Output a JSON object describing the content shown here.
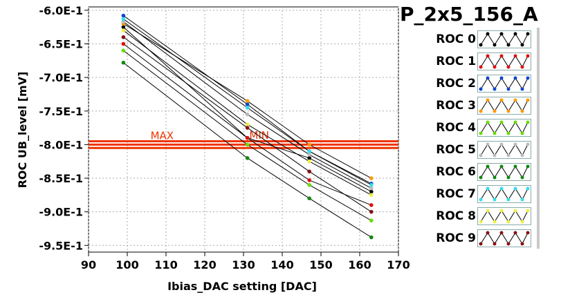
{
  "chart_data": {
    "type": "line",
    "title": "P_2x5_156_A",
    "xlabel": "Ibias_DAC setting [DAC]",
    "ylabel": "ROC UB_level [mV]",
    "xlim": [
      90,
      170
    ],
    "ylim": [
      -0.96,
      -0.595
    ],
    "x_ticks": [
      "90",
      "100",
      "110",
      "120",
      "130",
      "140",
      "150",
      "160",
      "170"
    ],
    "x_tick_values": [
      90,
      100,
      110,
      120,
      130,
      140,
      150,
      160,
      170
    ],
    "y_ticks": [
      "-6.0E-1",
      "-6.5E-1",
      "-7.0E-1",
      "-7.5E-1",
      "-8.0E-1",
      "-8.5E-1",
      "-9.0E-1",
      "-9.5E-1"
    ],
    "y_tick_values": [
      -0.6,
      -0.65,
      -0.7,
      -0.75,
      -0.8,
      -0.85,
      -0.9,
      -0.95
    ],
    "grid": true,
    "legend_position": "right",
    "series": [
      {
        "name": "ROC 0",
        "color": "#000000",
        "points": [
          [
            99,
            -0.625
          ],
          [
            131,
            -0.79
          ],
          [
            147,
            -0.82
          ],
          [
            163,
            -0.87
          ]
        ]
      },
      {
        "name": "ROC 1",
        "color": "#dd1111",
        "points": [
          [
            99,
            -0.65
          ],
          [
            131,
            -0.79
          ],
          [
            147,
            -0.853
          ],
          [
            163,
            -0.89
          ]
        ]
      },
      {
        "name": "ROC 2",
        "color": "#1144cc",
        "points": [
          [
            99,
            -0.608
          ],
          [
            131,
            -0.74
          ],
          [
            147,
            -0.81
          ],
          [
            163,
            -0.858
          ]
        ]
      },
      {
        "name": "ROC 3",
        "color": "#ff9900",
        "points": [
          [
            99,
            -0.62
          ],
          [
            131,
            -0.735
          ],
          [
            147,
            -0.8
          ],
          [
            163,
            -0.85
          ]
        ]
      },
      {
        "name": "ROC 4",
        "color": "#66dd00",
        "points": [
          [
            99,
            -0.66
          ],
          [
            131,
            -0.8
          ],
          [
            147,
            -0.86
          ],
          [
            163,
            -0.913
          ]
        ]
      },
      {
        "name": "ROC 5",
        "color": "#bbbbbb",
        "points": [
          [
            99,
            -0.617
          ],
          [
            131,
            -0.755
          ],
          [
            147,
            -0.815
          ],
          [
            163,
            -0.865
          ]
        ]
      },
      {
        "name": "ROC 6",
        "color": "#118811",
        "points": [
          [
            99,
            -0.678
          ],
          [
            131,
            -0.82
          ],
          [
            147,
            -0.88
          ],
          [
            163,
            -0.938
          ]
        ]
      },
      {
        "name": "ROC 7",
        "color": "#33ddee",
        "points": [
          [
            99,
            -0.613
          ],
          [
            131,
            -0.745
          ],
          [
            147,
            -0.81
          ],
          [
            163,
            -0.86
          ]
        ]
      },
      {
        "name": "ROC 8",
        "color": "#eeee44",
        "points": [
          [
            99,
            -0.63
          ],
          [
            131,
            -0.77
          ],
          [
            147,
            -0.825
          ],
          [
            163,
            -0.875
          ]
        ]
      },
      {
        "name": "ROC 9",
        "color": "#881111",
        "points": [
          [
            99,
            -0.64
          ],
          [
            131,
            -0.775
          ],
          [
            147,
            -0.84
          ],
          [
            163,
            -0.9
          ]
        ]
      }
    ],
    "threshold_lines": [
      {
        "label": "MAX",
        "y": -0.795,
        "color": "#ee3300"
      },
      {
        "label": "MIN",
        "y": -0.805,
        "color": "#ee3300"
      },
      {
        "label": "",
        "y": -0.8,
        "color": "#ee3300"
      }
    ]
  },
  "legend": {
    "rows": [
      {
        "label": "ROC 0",
        "color": "#000000"
      },
      {
        "label": "ROC 1",
        "color": "#dd1111"
      },
      {
        "label": "ROC 2",
        "color": "#1144cc"
      },
      {
        "label": "ROC 3",
        "color": "#ff9900"
      },
      {
        "label": "ROC 4",
        "color": "#66dd00"
      },
      {
        "label": "ROC 5",
        "color": "#bbbbbb"
      },
      {
        "label": "ROC 6",
        "color": "#118811"
      },
      {
        "label": "ROC 7",
        "color": "#33ddee"
      },
      {
        "label": "ROC 8",
        "color": "#eeee44"
      },
      {
        "label": "ROC 9",
        "color": "#881111"
      }
    ]
  }
}
